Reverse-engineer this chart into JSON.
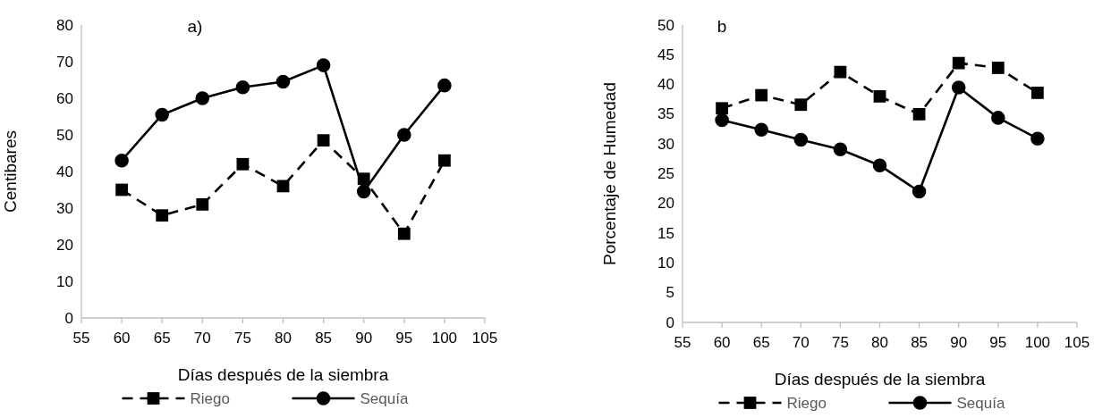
{
  "chart_data": [
    {
      "type": "line",
      "title": "a)",
      "xlabel": "Días después de la siembra",
      "ylabel": "Centibares",
      "x": [
        60,
        65,
        70,
        75,
        80,
        85,
        90,
        95,
        100
      ],
      "xlim": [
        55,
        105
      ],
      "xticks": [
        55,
        60,
        65,
        70,
        75,
        80,
        85,
        90,
        95,
        100,
        105
      ],
      "ylim": [
        0,
        80
      ],
      "yticks": [
        0,
        10,
        20,
        30,
        40,
        50,
        60,
        70,
        80
      ],
      "grid": false,
      "legend": "bottom",
      "series": [
        {
          "name": "Riego",
          "color": "#000000",
          "marker": "square",
          "line_style": "dashed",
          "values": [
            35,
            28,
            31,
            42,
            36,
            48.5,
            38,
            23,
            43
          ]
        },
        {
          "name": "Sequía",
          "color": "#000000",
          "marker": "circle",
          "line_style": "solid",
          "values": [
            43,
            55.5,
            60,
            63,
            64.5,
            69,
            34.5,
            50,
            63.5
          ]
        }
      ]
    },
    {
      "type": "line",
      "title": "b",
      "xlabel": "Días después de la siembra",
      "ylabel": "Porcentaje de Humedad",
      "x": [
        60,
        65,
        70,
        75,
        80,
        85,
        90,
        95,
        100
      ],
      "xlim": [
        55,
        105
      ],
      "xticks": [
        55,
        60,
        65,
        70,
        75,
        80,
        85,
        90,
        95,
        100,
        105
      ],
      "ylim": [
        0,
        50
      ],
      "yticks": [
        0,
        5,
        10,
        15,
        20,
        25,
        30,
        35,
        40,
        45,
        50
      ],
      "grid": false,
      "legend": "bottom",
      "series": [
        {
          "name": "Riego",
          "color": "#000000",
          "marker": "square",
          "line_style": "dashed",
          "values": [
            36,
            38.2,
            36.6,
            42.1,
            38,
            35,
            43.6,
            42.8,
            38.6
          ]
        },
        {
          "name": "Sequía",
          "color": "#000000",
          "marker": "circle",
          "line_style": "solid",
          "values": [
            34,
            32.4,
            30.7,
            29.1,
            26.4,
            22,
            39.5,
            34.4,
            30.9
          ]
        }
      ]
    }
  ]
}
